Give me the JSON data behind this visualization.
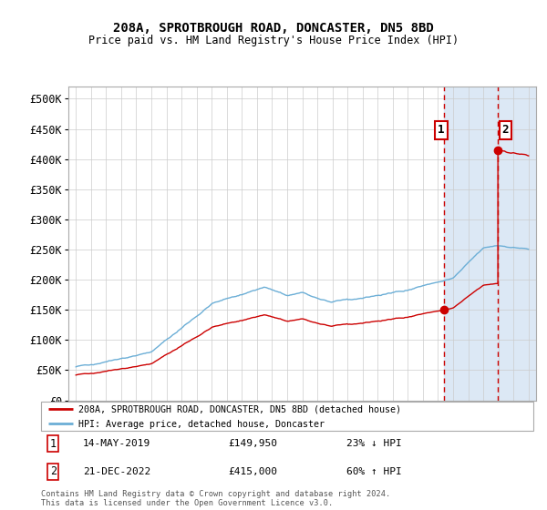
{
  "title": "208A, SPROTBROUGH ROAD, DONCASTER, DN5 8BD",
  "subtitle": "Price paid vs. HM Land Registry's House Price Index (HPI)",
  "legend_line1": "208A, SPROTBROUGH ROAD, DONCASTER, DN5 8BD (detached house)",
  "legend_line2": "HPI: Average price, detached house, Doncaster",
  "annotation1_label": "1",
  "annotation1_date": "14-MAY-2019",
  "annotation1_price": "£149,950",
  "annotation1_pct": "23% ↓ HPI",
  "annotation2_label": "2",
  "annotation2_date": "21-DEC-2022",
  "annotation2_price": "£415,000",
  "annotation2_pct": "60% ↑ HPI",
  "footer": "Contains HM Land Registry data © Crown copyright and database right 2024.\nThis data is licensed under the Open Government Licence v3.0.",
  "sale1_x": 2019.37,
  "sale1_y": 149950,
  "sale2_x": 2022.97,
  "sale2_y": 415000,
  "hpi_color": "#6baed6",
  "sale_color": "#cc0000",
  "shade_color": "#dce8f5",
  "ylim": [
    0,
    520000
  ],
  "xlim_start": 1994.5,
  "xlim_end": 2025.5
}
